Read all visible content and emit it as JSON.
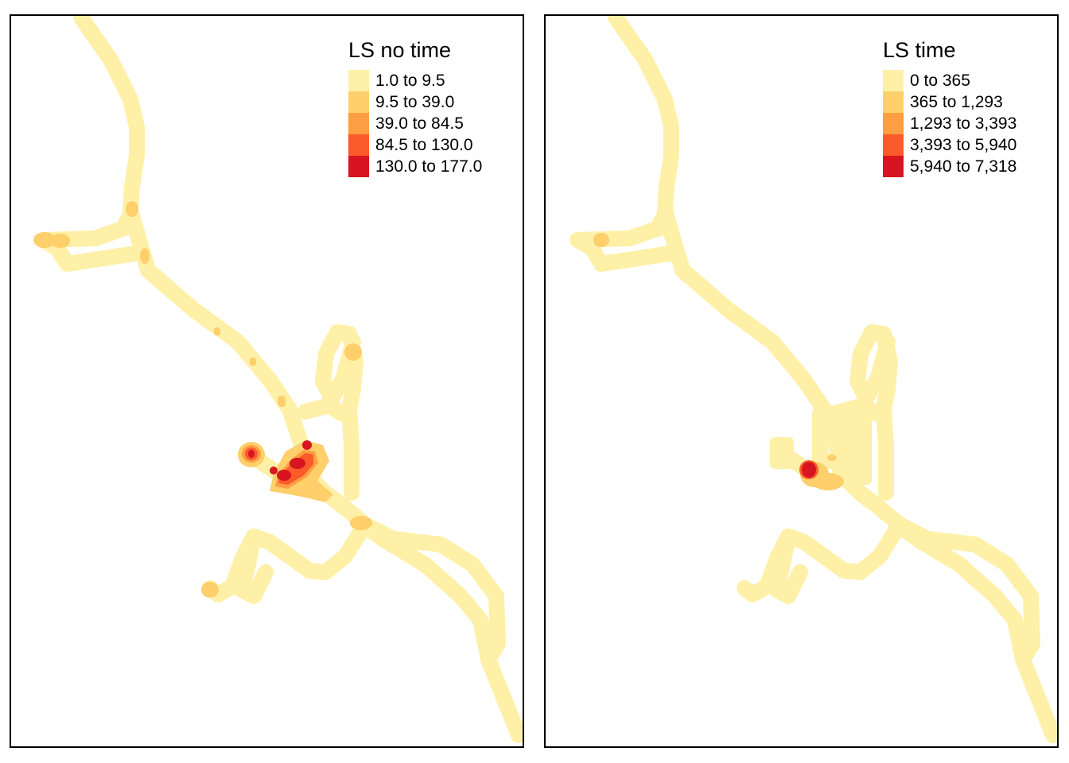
{
  "maps": [
    {
      "legend": {
        "title": "LS no time",
        "classes": [
          {
            "label": "1.0 to 9.5",
            "color": "#FFF0A8"
          },
          {
            "label": "9.5 to 39.0",
            "color": "#FECF6A"
          },
          {
            "label": "39.0 to 84.5",
            "color": "#FD9E43"
          },
          {
            "label": "84.5 to 130.0",
            "color": "#FB5A2B"
          },
          {
            "label": "130.0 to 177.0",
            "color": "#D7141F"
          }
        ]
      }
    },
    {
      "legend": {
        "title": "LS time",
        "classes": [
          {
            "label": "0 to 365",
            "color": "#FFF0A8"
          },
          {
            "label": "365 to 1,293",
            "color": "#FECF6A"
          },
          {
            "label": "1,293 to 3,393",
            "color": "#FD9E43"
          },
          {
            "label": "3,393 to 5,940",
            "color": "#FB5A2B"
          },
          {
            "label": "5,940 to 7,318",
            "color": "#D7141F"
          }
        ]
      }
    }
  ]
}
